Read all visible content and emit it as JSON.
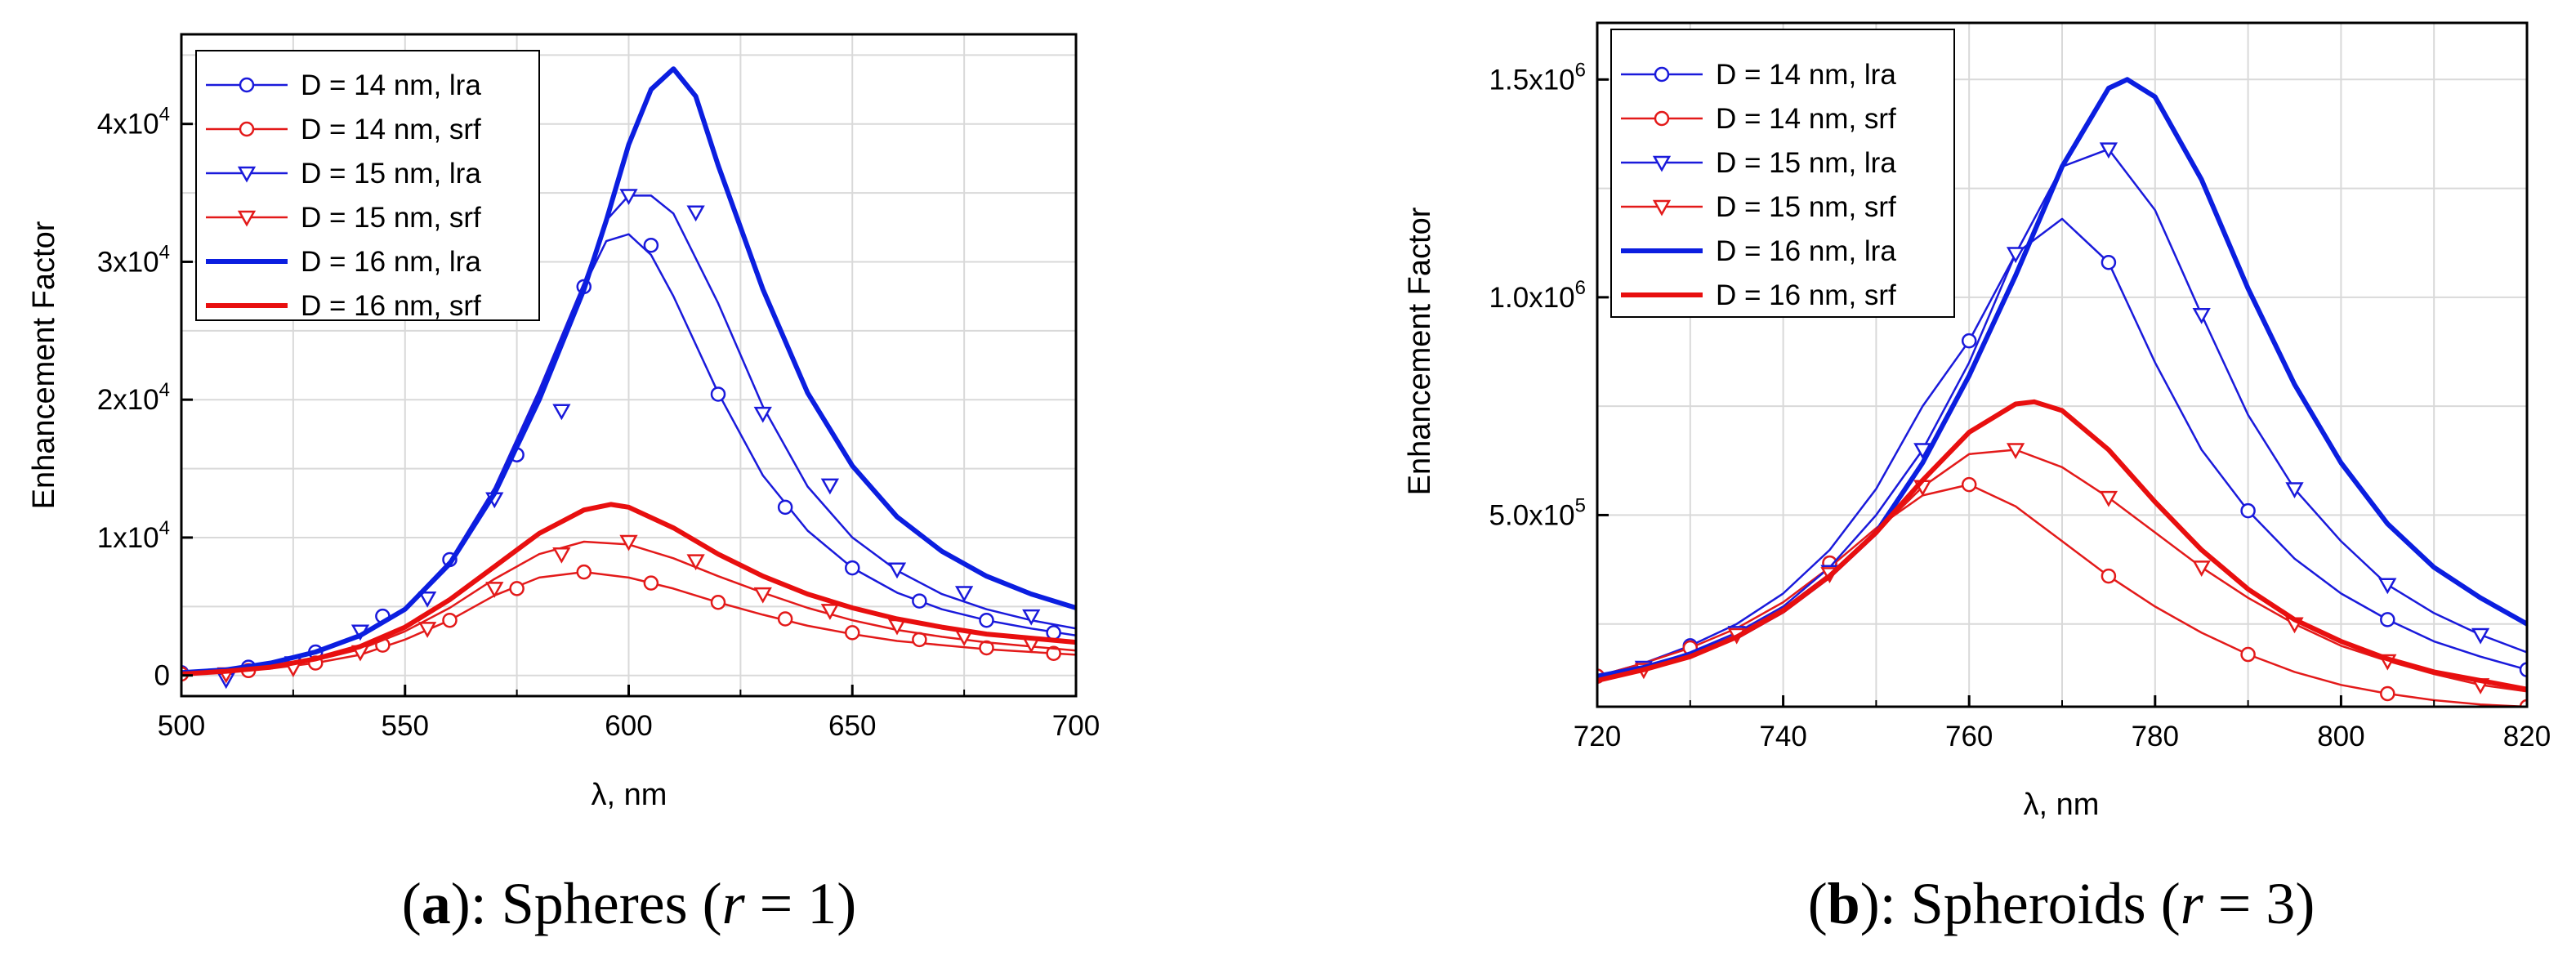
{
  "chart_data": [
    {
      "id": "a",
      "type": "line",
      "ylabel": "Enhancement Factor",
      "xlabel": "λ, nm",
      "xlim": [
        500,
        700
      ],
      "ylim": [
        -1500,
        46500
      ],
      "xticks": [
        500,
        550,
        600,
        650,
        700
      ],
      "xtick_labels": [
        "500",
        "550",
        "600",
        "650",
        "700"
      ],
      "yticks": [
        0,
        10000,
        20000,
        30000,
        40000
      ],
      "ytick_labels": [
        {
          "m": "0",
          "e": ""
        },
        {
          "m": "1x10",
          "e": "4"
        },
        {
          "m": "2x10",
          "e": "4"
        },
        {
          "m": "3x10",
          "e": "4"
        },
        {
          "m": "4x10",
          "e": "4"
        }
      ],
      "caption": {
        "open": "(",
        "letter": "a",
        "close": "): Spheres (",
        "var": "r",
        "rest": " = 1)"
      },
      "series": [
        {
          "name": "D = 14 nm, lra",
          "color": "#1a1adb",
          "marker": "circle",
          "width": 2.5,
          "x": [
            500,
            510,
            520,
            530,
            540,
            550,
            560,
            570,
            580,
            590,
            595,
            600,
            605,
            610,
            620,
            630,
            640,
            650,
            660,
            670,
            680,
            690,
            700
          ],
          "y": [
            200,
            400,
            900,
            1700,
            2900,
            4800,
            8200,
            13500,
            20500,
            28200,
            31500,
            32000,
            30500,
            27500,
            20500,
            14500,
            10500,
            7800,
            6000,
            4800,
            4000,
            3400,
            2900
          ],
          "mx": [
            500,
            515,
            530,
            545,
            560,
            575,
            590,
            605,
            620,
            635,
            650,
            665,
            680,
            695
          ],
          "my": [
            200,
            600,
            1700,
            4300,
            8400,
            16000,
            28200,
            31200,
            20400,
            12200,
            7800,
            5400,
            4000,
            3100
          ]
        },
        {
          "name": "D = 14 nm, srf",
          "color": "#e31a1a",
          "marker": "circle",
          "width": 2.5,
          "x": [
            500,
            510,
            520,
            530,
            540,
            550,
            560,
            570,
            580,
            590,
            600,
            610,
            620,
            630,
            640,
            650,
            660,
            670,
            680,
            690,
            700
          ],
          "y": [
            100,
            300,
            500,
            900,
            1500,
            2600,
            4000,
            5800,
            7100,
            7500,
            7100,
            6300,
            5300,
            4400,
            3600,
            3000,
            2500,
            2200,
            1900,
            1700,
            1500
          ],
          "mx": [
            500,
            515,
            530,
            545,
            560,
            575,
            590,
            605,
            620,
            635,
            650,
            665,
            680,
            695
          ],
          "my": [
            100,
            350,
            900,
            2200,
            4000,
            6300,
            7500,
            6700,
            5300,
            4100,
            3100,
            2600,
            2000,
            1600
          ]
        },
        {
          "name": "D = 15 nm, lra",
          "color": "#1a1adb",
          "marker": "triangle",
          "width": 2.5,
          "x": [
            500,
            510,
            520,
            530,
            540,
            550,
            560,
            570,
            580,
            590,
            595,
            600,
            605,
            610,
            620,
            630,
            640,
            650,
            660,
            670,
            680,
            690,
            700
          ],
          "y": [
            200,
            400,
            900,
            1700,
            2900,
            4900,
            8300,
            13600,
            20700,
            28500,
            33000,
            34800,
            34800,
            33500,
            27000,
            19500,
            13700,
            10000,
            7600,
            5900,
            4800,
            4000,
            3400
          ],
          "mx": [
            510,
            525,
            540,
            555,
            570,
            585,
            600,
            615,
            630,
            645,
            660,
            675,
            690
          ],
          "my": [
            -300,
            900,
            3200,
            5600,
            12800,
            19200,
            34800,
            33600,
            19000,
            13800,
            7700,
            6000,
            4300
          ]
        },
        {
          "name": "D = 15 nm, srf",
          "color": "#e31a1a",
          "marker": "triangle",
          "width": 2.5,
          "x": [
            500,
            510,
            520,
            530,
            540,
            550,
            560,
            570,
            580,
            590,
            600,
            610,
            620,
            630,
            640,
            650,
            660,
            670,
            680,
            690,
            700
          ],
          "y": [
            100,
            300,
            600,
            1100,
            1900,
            3200,
            4900,
            7000,
            8800,
            9700,
            9500,
            8500,
            7200,
            6000,
            4900,
            4000,
            3300,
            2800,
            2400,
            2100,
            1800
          ],
          "mx": [
            510,
            525,
            540,
            555,
            570,
            585,
            600,
            615,
            630,
            645,
            660,
            675,
            690
          ],
          "my": [
            100,
            550,
            1700,
            3400,
            6300,
            8800,
            9700,
            8300,
            5900,
            4700,
            3600,
            2800,
            2300
          ]
        },
        {
          "name": "D = 16 nm, lra",
          "color": "#0b1ee0",
          "marker": "none",
          "width": 6,
          "x": [
            500,
            510,
            520,
            530,
            540,
            550,
            560,
            570,
            580,
            590,
            595,
            600,
            605,
            610,
            615,
            620,
            630,
            640,
            650,
            660,
            670,
            680,
            690,
            700
          ],
          "y": [
            200,
            400,
            900,
            1700,
            2900,
            4800,
            8100,
            13200,
            20000,
            28000,
            33000,
            38500,
            42500,
            44000,
            42000,
            37000,
            28000,
            20500,
            15200,
            11500,
            9000,
            7200,
            5900,
            4900
          ]
        },
        {
          "name": "D = 16 nm, srf",
          "color": "#e80f0f",
          "marker": "none",
          "width": 6,
          "x": [
            500,
            510,
            520,
            530,
            540,
            550,
            560,
            570,
            580,
            590,
            596,
            600,
            610,
            620,
            630,
            640,
            650,
            660,
            670,
            680,
            690,
            700
          ],
          "y": [
            100,
            300,
            600,
            1200,
            2100,
            3500,
            5500,
            7900,
            10300,
            12000,
            12400,
            12200,
            10700,
            8800,
            7200,
            5900,
            4900,
            4100,
            3500,
            3000,
            2700,
            2400
          ]
        }
      ]
    },
    {
      "id": "b",
      "type": "line",
      "ylabel": "Enhancement Factor",
      "xlabel": "λ, nm",
      "xlim": [
        720,
        820
      ],
      "ylim": [
        60000,
        1630000
      ],
      "xticks": [
        720,
        740,
        760,
        780,
        800,
        820
      ],
      "xtick_labels": [
        "720",
        "740",
        "760",
        "780",
        "800",
        "820"
      ],
      "yticks": [
        500000,
        1000000,
        1500000
      ],
      "ytick_labels": [
        {
          "m": "5.0x10",
          "e": "5"
        },
        {
          "m": "1.0x10",
          "e": "6"
        },
        {
          "m": "1.5x10",
          "e": "6"
        }
      ],
      "caption": {
        "open": "(",
        "letter": "b",
        "close": "): Spheroids (",
        "var": "r",
        "rest": " = 3)"
      },
      "series": [
        {
          "name": "D = 14 nm, lra",
          "color": "#1a1adb",
          "marker": "circle",
          "width": 2.5,
          "x": [
            720,
            725,
            730,
            735,
            740,
            745,
            750,
            755,
            760,
            765,
            770,
            775,
            780,
            785,
            790,
            795,
            800,
            805,
            810,
            815,
            820
          ],
          "y": [
            130000,
            160000,
            200000,
            250000,
            320000,
            420000,
            560000,
            750000,
            900000,
            1100000,
            1180000,
            1080000,
            850000,
            650000,
            510000,
            400000,
            320000,
            260000,
            210000,
            175000,
            145000
          ],
          "mx": [
            720,
            730,
            745,
            760,
            775,
            790,
            805,
            820
          ],
          "my": [
            130000,
            200000,
            390000,
            900000,
            1080000,
            510000,
            260000,
            145000
          ]
        },
        {
          "name": "D = 14 nm, srf",
          "color": "#e31a1a",
          "marker": "circle",
          "width": 2.5,
          "x": [
            720,
            725,
            730,
            735,
            740,
            745,
            750,
            755,
            760,
            765,
            770,
            775,
            780,
            785,
            790,
            795,
            800,
            805,
            810,
            815,
            820
          ],
          "y": [
            130000,
            160000,
            195000,
            240000,
            300000,
            380000,
            470000,
            545000,
            570000,
            520000,
            440000,
            360000,
            290000,
            230000,
            180000,
            140000,
            110000,
            90000,
            75000,
            65000,
            60000
          ],
          "mx": [
            720,
            730,
            745,
            760,
            775,
            790,
            805,
            820
          ],
          "my": [
            130000,
            195000,
            390000,
            570000,
            360000,
            180000,
            90000,
            60000
          ]
        },
        {
          "name": "D = 15 nm, lra",
          "color": "#1a1adb",
          "marker": "triangle",
          "width": 2.5,
          "x": [
            720,
            725,
            730,
            735,
            740,
            745,
            750,
            755,
            760,
            765,
            770,
            775,
            780,
            785,
            790,
            795,
            800,
            805,
            810,
            815,
            820
          ],
          "y": [
            130000,
            150000,
            185000,
            230000,
            290000,
            380000,
            500000,
            650000,
            850000,
            1100000,
            1300000,
            1340000,
            1200000,
            960000,
            730000,
            560000,
            440000,
            340000,
            275000,
            225000,
            185000
          ],
          "mx": [
            725,
            735,
            745,
            755,
            765,
            775,
            785,
            795,
            805,
            815
          ],
          "my": [
            150000,
            230000,
            370000,
            650000,
            1100000,
            1340000,
            960000,
            560000,
            340000,
            225000
          ]
        },
        {
          "name": "D = 15 nm, srf",
          "color": "#e31a1a",
          "marker": "triangle",
          "width": 2.5,
          "x": [
            720,
            725,
            730,
            735,
            740,
            745,
            750,
            755,
            760,
            765,
            770,
            775,
            780,
            785,
            790,
            795,
            800,
            805,
            810,
            815,
            820
          ],
          "y": [
            120000,
            145000,
            180000,
            225000,
            285000,
            365000,
            460000,
            565000,
            640000,
            650000,
            610000,
            540000,
            460000,
            380000,
            310000,
            250000,
            200000,
            165000,
            135000,
            110000,
            95000
          ],
          "mx": [
            725,
            735,
            745,
            755,
            765,
            775,
            785,
            795,
            805,
            815
          ],
          "my": [
            145000,
            225000,
            365000,
            565000,
            650000,
            540000,
            380000,
            250000,
            165000,
            110000
          ]
        },
        {
          "name": "D = 16 nm, lra",
          "color": "#0b1ee0",
          "marker": "none",
          "width": 6,
          "x": [
            720,
            725,
            730,
            735,
            740,
            745,
            750,
            755,
            760,
            765,
            770,
            775,
            777,
            780,
            785,
            790,
            795,
            800,
            805,
            810,
            815,
            820
          ],
          "y": [
            130000,
            150000,
            180000,
            220000,
            280000,
            360000,
            460000,
            620000,
            820000,
            1050000,
            1300000,
            1480000,
            1500000,
            1460000,
            1270000,
            1020000,
            800000,
            620000,
            480000,
            380000,
            310000,
            250000
          ]
        },
        {
          "name": "D = 16 nm, srf",
          "color": "#e80f0f",
          "marker": "none",
          "width": 6,
          "x": [
            720,
            725,
            730,
            735,
            740,
            745,
            750,
            755,
            760,
            765,
            767,
            770,
            775,
            780,
            785,
            790,
            795,
            800,
            805,
            810,
            815,
            820
          ],
          "y": [
            120000,
            145000,
            175000,
            220000,
            280000,
            360000,
            460000,
            580000,
            690000,
            755000,
            760000,
            740000,
            650000,
            530000,
            420000,
            330000,
            260000,
            210000,
            170000,
            140000,
            120000,
            100000
          ]
        }
      ]
    }
  ]
}
